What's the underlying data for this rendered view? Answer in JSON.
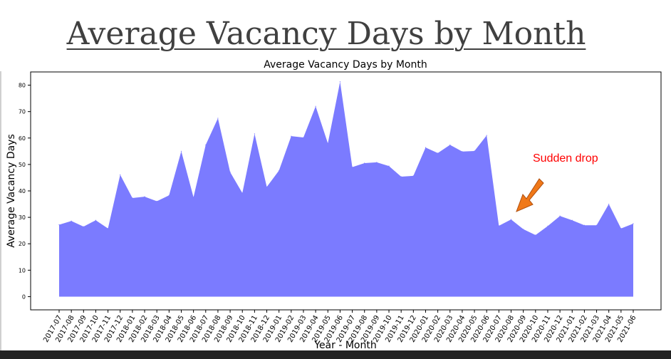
{
  "slide": {
    "title": "Average Vacancy Days by Month"
  },
  "chart_data": {
    "type": "area",
    "title": "Average Vacancy Days by Month",
    "xlabel": "Year - Month",
    "ylabel": "Average Vacancy Days",
    "ylim": [
      -5,
      85
    ],
    "yticks": [
      0,
      10,
      20,
      30,
      40,
      50,
      60,
      70,
      80
    ],
    "fill_color": "#7b7bff",
    "categories": [
      "2017-07",
      "2017-08",
      "2017-09",
      "2017-10",
      "2017-11",
      "2017-12",
      "2018-01",
      "2018-02",
      "2018-03",
      "2018-04",
      "2018-05",
      "2018-06",
      "2018-07",
      "2018-08",
      "2018-09",
      "2018-10",
      "2018-11",
      "2018-12",
      "2019-01",
      "2019-02",
      "2019-03",
      "2019-04",
      "2019-05",
      "2019-06",
      "2019-07",
      "2019-08",
      "2019-09",
      "2019-10",
      "2019-11",
      "2019-12",
      "2020-01",
      "2020-02",
      "2020-03",
      "2020-04",
      "2020-05",
      "2020-06",
      "2020-07",
      "2020-08",
      "2020-09",
      "2020-10",
      "2020-11",
      "2020-12",
      "2021-01",
      "2021-02",
      "2021-03",
      "2021-04",
      "2021-05",
      "2021-06"
    ],
    "values": [
      27.2,
      28.6,
      26.5,
      28.9,
      25.8,
      46.1,
      37.3,
      37.8,
      36.1,
      38.3,
      55.0,
      37.6,
      57.4,
      67.5,
      47.1,
      39.2,
      61.6,
      41.5,
      47.7,
      60.7,
      60.2,
      72.0,
      58.0,
      81.3,
      49.0,
      50.5,
      50.8,
      49.4,
      45.4,
      45.7,
      56.4,
      54.3,
      57.4,
      54.9,
      55.1,
      61.0,
      26.8,
      29.2,
      25.5,
      23.3,
      26.7,
      30.5,
      28.9,
      27.0,
      27.0,
      35.0,
      25.8,
      27.6
    ],
    "annotation": {
      "text": "Sudden drop",
      "color": "#ff0000",
      "arrow_color": "#f07818"
    }
  }
}
